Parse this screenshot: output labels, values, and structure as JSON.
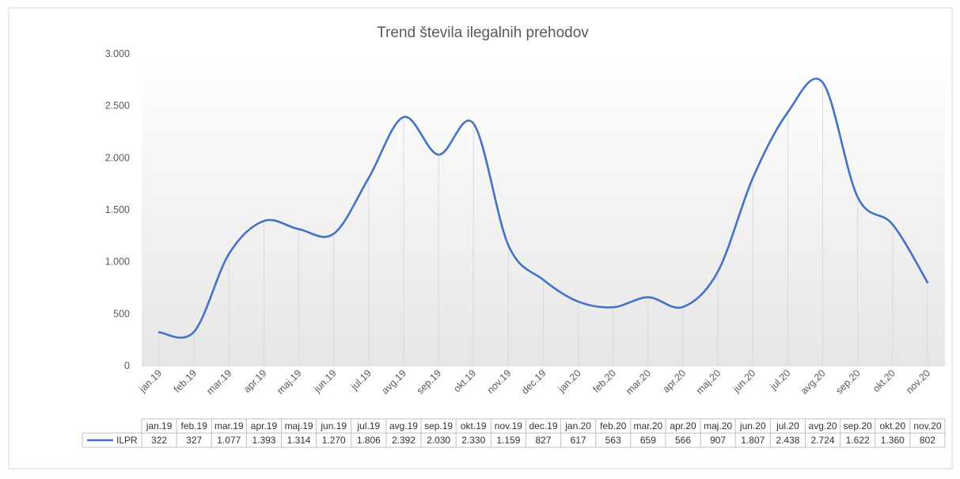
{
  "chart_data": {
    "type": "line",
    "title": "Trend števila ilegalnih prehodov",
    "xlabel": "",
    "ylabel": "",
    "categories": [
      "jan.19",
      "feb.19",
      "mar.19",
      "apr.19",
      "maj.19",
      "jun.19",
      "jul.19",
      "avg.19",
      "sep.19",
      "okt.19",
      "nov.19",
      "dec.19",
      "jan.20",
      "feb.20",
      "mar.20",
      "apr.20",
      "maj.20",
      "jun.20",
      "jul.20",
      "avg.20",
      "sep.20",
      "okt.20",
      "nov.20"
    ],
    "series": [
      {
        "name": "ILPR",
        "color": "#4472c4",
        "values": [
          322,
          327,
          1077,
          1393,
          1314,
          1270,
          1806,
          2392,
          2030,
          2330,
          1159,
          827,
          617,
          563,
          659,
          566,
          907,
          1807,
          2438,
          2724,
          1622,
          1360,
          802
        ],
        "value_labels": [
          "322",
          "327",
          "1.077",
          "1.393",
          "1.314",
          "1.270",
          "1.806",
          "2.392",
          "2.030",
          "2.330",
          "1.159",
          "827",
          "617",
          "563",
          "659",
          "566",
          "907",
          "1.807",
          "2.438",
          "2.724",
          "1.622",
          "1.360",
          "802"
        ]
      }
    ],
    "ylim": [
      0,
      3000
    ],
    "yticks": [
      0,
      500,
      1000,
      1500,
      2000,
      2500,
      3000
    ],
    "ytick_labels": [
      "0",
      "500",
      "1.000",
      "1.500",
      "2.000",
      "2.500",
      "3.000"
    ],
    "grid": false,
    "drop_lines": true,
    "data_table": true,
    "legend": "in data table",
    "colors": {
      "line": "#4472c4",
      "drop_line": "#d9d9d9",
      "table_border": "#bfbfbf",
      "text": "#595959"
    }
  }
}
